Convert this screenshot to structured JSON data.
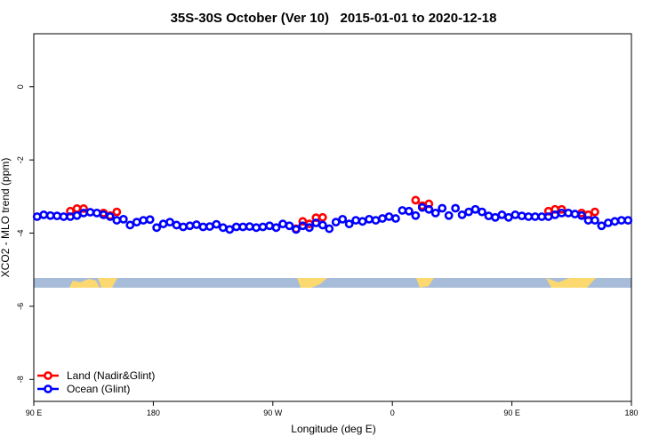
{
  "chart_data": {
    "type": "scatter",
    "title": "35S-30S October (Ver 10)   2015-01-01 to 2020-12-18",
    "x_label": "Longitude (deg E)",
    "y_label": "XCO2 - MLO trend (ppm)",
    "xlim": [
      90,
      540
    ],
    "ylim": [
      -8.6,
      1.45
    ],
    "xticks": [
      {
        "value": 90,
        "label": "90 E"
      },
      180,
      {
        "value": 270,
        "label": "90 W"
      },
      {
        "value": 360,
        "label": "0"
      },
      {
        "value": 450,
        "label": "90 E"
      },
      {
        "value": 540,
        "label": "180"
      }
    ],
    "yticks": [
      0,
      -2,
      -4,
      -6,
      -8
    ],
    "legend": "bottom-left",
    "series": [
      {
        "name": "Land (Nadir&Glint)",
        "color": "#ff0000",
        "x": [
          117.5,
          122.5,
          127.5,
          142.5,
          147.5,
          152.5,
          287.5,
          292.5,
          297.5,
          302.5,
          307.5,
          377.5,
          382.5,
          387.5,
          477.5,
          482.5,
          487.5,
          502.5,
          507.5,
          512.5
        ],
        "values": [
          -3.4,
          -3.33,
          -3.33,
          -3.45,
          -3.52,
          -3.42,
          -3.88,
          -3.68,
          -3.75,
          -3.58,
          -3.57,
          -3.1,
          -3.25,
          -3.2,
          -3.4,
          -3.35,
          -3.35,
          -3.45,
          -3.5,
          -3.42
        ]
      },
      {
        "name": "Ocean (Glint)",
        "color": "#0000ff",
        "x": [
          92.5,
          97.5,
          102.5,
          107.5,
          112.5,
          117.5,
          122.5,
          127.5,
          132.5,
          137.5,
          142.5,
          147.5,
          152.5,
          157.5,
          162.5,
          167.5,
          172.5,
          177.5,
          182.5,
          187.5,
          192.5,
          197.5,
          202.5,
          207.5,
          212.5,
          217.5,
          222.5,
          227.5,
          232.5,
          237.5,
          242.5,
          247.5,
          252.5,
          257.5,
          262.5,
          267.5,
          272.5,
          277.5,
          282.5,
          287.5,
          292.5,
          297.5,
          302.5,
          307.5,
          312.5,
          317.5,
          322.5,
          327.5,
          332.5,
          337.5,
          342.5,
          347.5,
          352.5,
          357.5,
          362.5,
          367.5,
          372.5,
          377.5,
          382.5,
          387.5,
          392.5,
          397.5,
          402.5,
          407.5,
          412.5,
          417.5,
          422.5,
          427.5,
          432.5,
          437.5,
          442.5,
          447.5,
          452.5,
          457.5,
          462.5,
          467.5,
          472.5,
          477.5,
          482.5,
          487.5,
          492.5,
          497.5,
          502.5,
          507.5,
          512.5,
          517.5,
          522.5,
          527.5,
          532.5,
          537.5
        ],
        "values": [
          -3.55,
          -3.5,
          -3.52,
          -3.53,
          -3.55,
          -3.55,
          -3.52,
          -3.45,
          -3.43,
          -3.45,
          -3.5,
          -3.55,
          -3.65,
          -3.62,
          -3.78,
          -3.7,
          -3.65,
          -3.63,
          -3.85,
          -3.75,
          -3.7,
          -3.78,
          -3.83,
          -3.8,
          -3.77,
          -3.83,
          -3.82,
          -3.76,
          -3.85,
          -3.9,
          -3.83,
          -3.83,
          -3.82,
          -3.85,
          -3.83,
          -3.8,
          -3.85,
          -3.75,
          -3.8,
          -3.9,
          -3.8,
          -3.85,
          -3.72,
          -3.78,
          -3.88,
          -3.7,
          -3.62,
          -3.75,
          -3.65,
          -3.68,
          -3.62,
          -3.65,
          -3.6,
          -3.55,
          -3.6,
          -3.38,
          -3.4,
          -3.52,
          -3.3,
          -3.35,
          -3.45,
          -3.32,
          -3.52,
          -3.32,
          -3.5,
          -3.42,
          -3.35,
          -3.42,
          -3.53,
          -3.57,
          -3.5,
          -3.57,
          -3.5,
          -3.53,
          -3.55,
          -3.55,
          -3.55,
          -3.55,
          -3.5,
          -3.45,
          -3.45,
          -3.48,
          -3.52,
          -3.65,
          -3.65,
          -3.8,
          -3.72,
          -3.68,
          -3.65,
          -3.65
        ]
      }
    ]
  }
}
